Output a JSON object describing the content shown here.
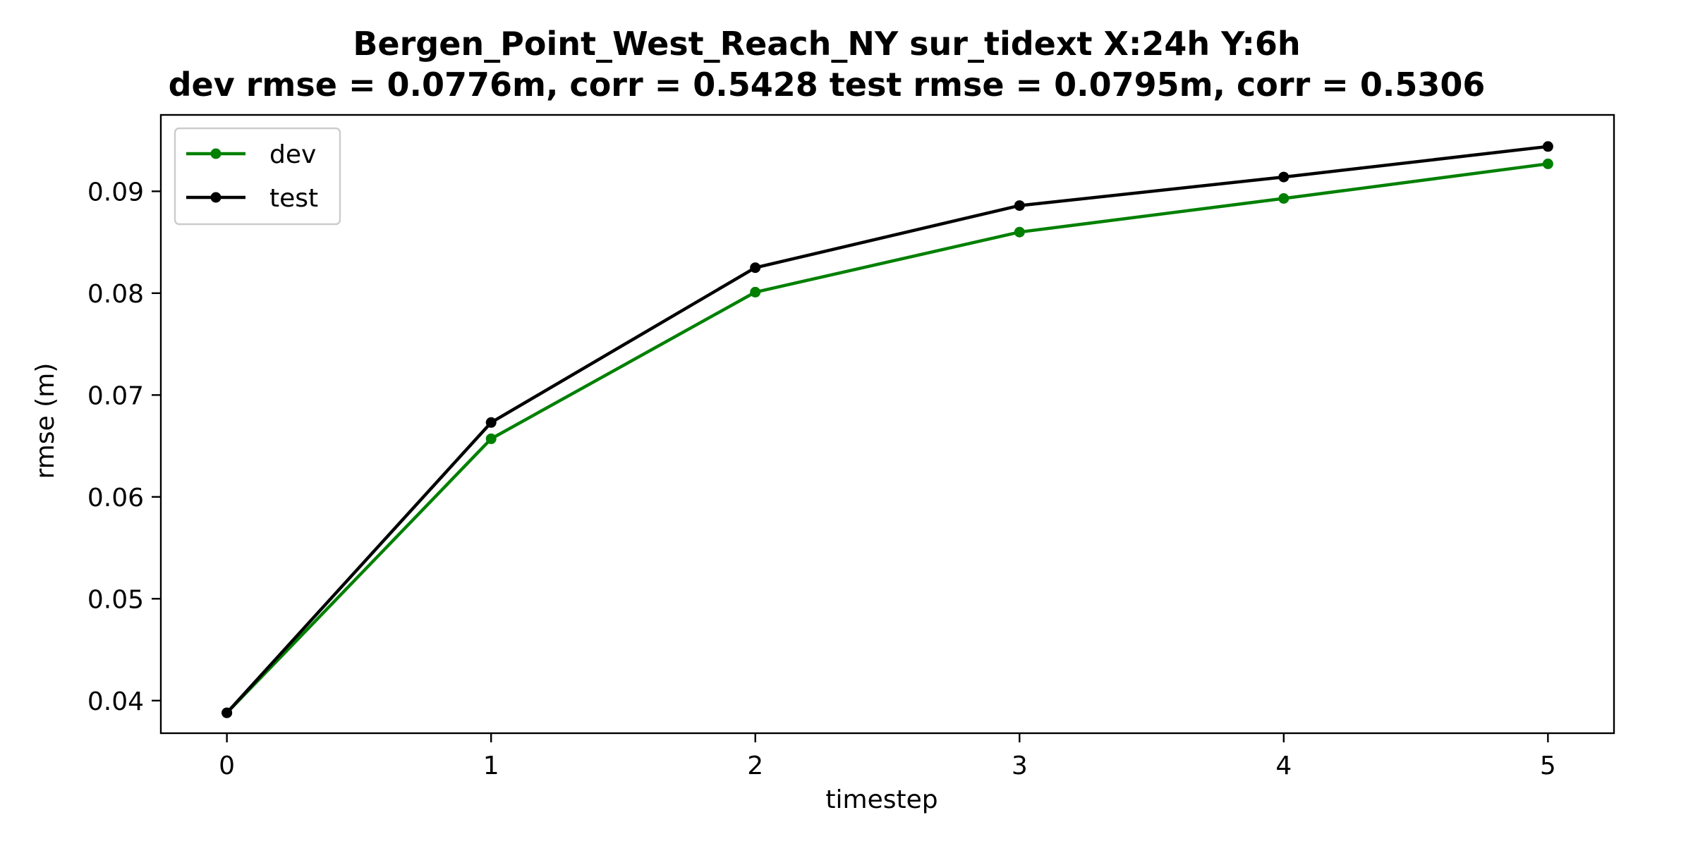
{
  "chart_data": {
    "type": "line",
    "title": "Bergen_Point_West_Reach_NY   sur_tidext   X:24h   Y:6h",
    "subtitle": "dev rmse = 0.0776m, corr = 0.5428   test rmse = 0.0795m, corr = 0.5306",
    "xlabel": "timestep",
    "ylabel": "rmse (m)",
    "x": [
      0,
      1,
      2,
      3,
      4,
      5
    ],
    "xlim": [
      -0.25,
      5.25
    ],
    "ylim": [
      0.0368,
      0.0975
    ],
    "xticks": [
      0,
      1,
      2,
      3,
      4,
      5
    ],
    "yticks": [
      0.04,
      0.05,
      0.06,
      0.07,
      0.08,
      0.09
    ],
    "ytick_labels": [
      "0.04",
      "0.05",
      "0.06",
      "0.07",
      "0.08",
      "0.09"
    ],
    "grid": false,
    "legend_position": "top-left",
    "series": [
      {
        "name": "dev",
        "color": "#008000",
        "values": [
          0.0388,
          0.0657,
          0.0801,
          0.086,
          0.0893,
          0.0927
        ]
      },
      {
        "name": "test",
        "color": "#000000",
        "values": [
          0.0388,
          0.0673,
          0.0825,
          0.0886,
          0.0914,
          0.0944
        ]
      }
    ]
  }
}
